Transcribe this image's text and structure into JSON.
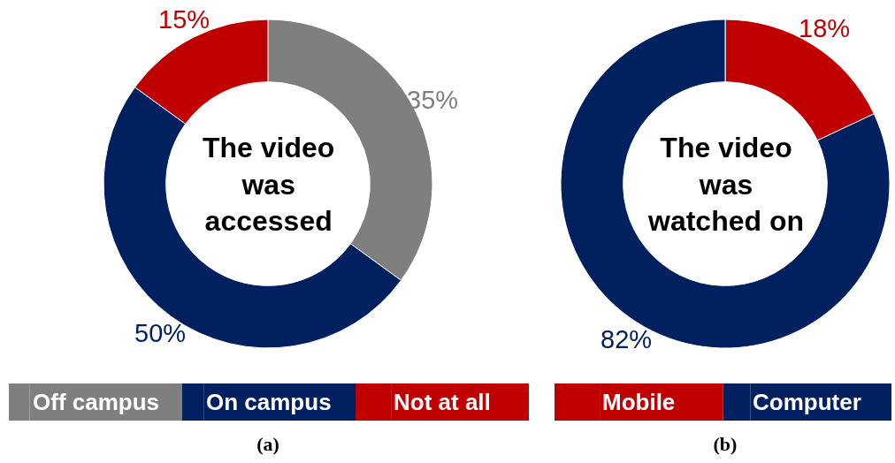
{
  "chart_data": [
    {
      "type": "donut",
      "title": "The video was accessed",
      "categories": [
        "Off campus",
        "On campus",
        "Not at all"
      ],
      "values": [
        35,
        50,
        15
      ],
      "colors": [
        "#7f7f7f",
        "#002060",
        "#c00000"
      ],
      "value_labels": [
        "35%",
        "50%",
        "15%"
      ],
      "legend": "bottom",
      "annotations": [
        "(a)"
      ]
    },
    {
      "type": "donut",
      "title": "The video was watched on",
      "categories": [
        "Mobile",
        "Computer"
      ],
      "values": [
        18,
        82
      ],
      "colors": [
        "#c00000",
        "#002060"
      ],
      "value_labels": [
        "18%",
        "82%"
      ],
      "legend": "bottom",
      "annotations": [
        "(b)"
      ]
    }
  ]
}
